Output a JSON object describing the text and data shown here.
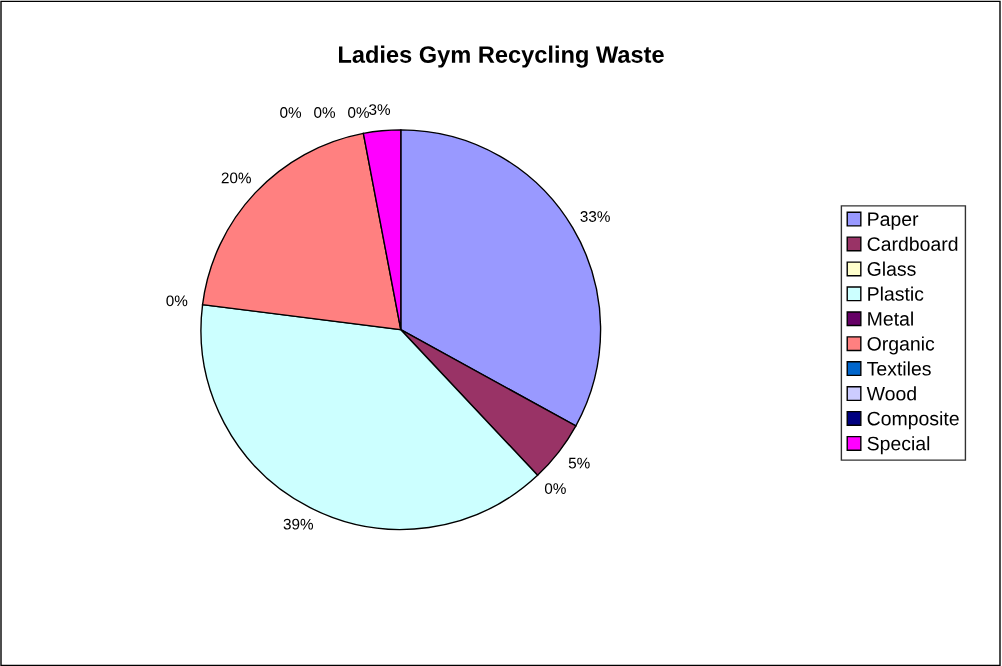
{
  "chart_data": {
    "type": "pie",
    "title": "Ladies Gym Recycling Waste",
    "categories": [
      "Paper",
      "Cardboard",
      "Glass",
      "Plastic",
      "Metal",
      "Organic",
      "Textiles",
      "Wood",
      "Composite",
      "Special"
    ],
    "values": [
      33,
      5,
      0,
      39,
      0,
      20,
      0,
      0,
      0,
      3
    ],
    "colors": [
      "#9999ff",
      "#993366",
      "#ffffcc",
      "#ccffff",
      "#660066",
      "#ff8080",
      "#0066cc",
      "#ccccff",
      "#000080",
      "#ff00ff"
    ],
    "value_labels": [
      "33%",
      "5%",
      "0%",
      "39%",
      "0%",
      "20%",
      "0%",
      "0%",
      "0%",
      "3%"
    ],
    "legend": "right"
  }
}
